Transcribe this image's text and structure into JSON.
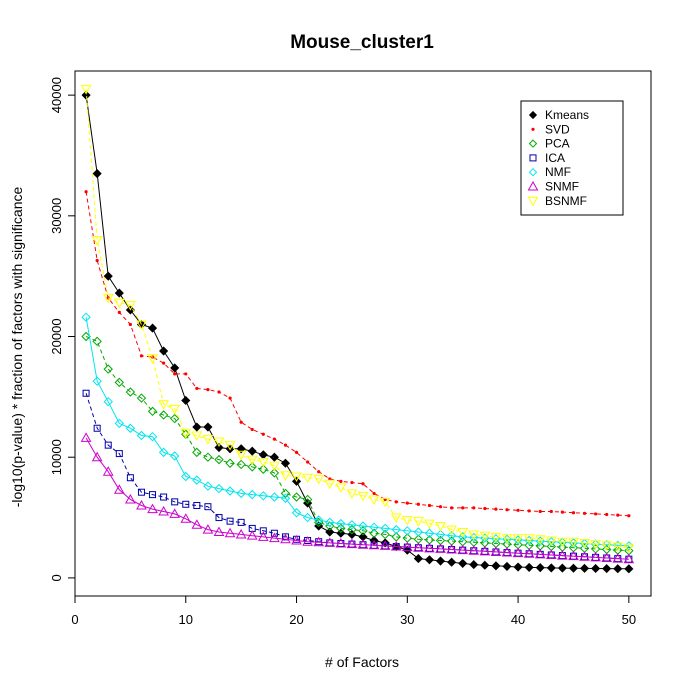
{
  "chart_data": {
    "type": "line",
    "title": "Mouse_cluster1",
    "xlabel": "# of Factors",
    "ylabel": "-log10(p-value) * fraction of factors with significance",
    "xlim": [
      0,
      52
    ],
    "ylim": [
      -1500,
      42000
    ],
    "x_ticks": [
      0,
      10,
      20,
      30,
      40,
      50
    ],
    "y_ticks": [
      0,
      10000,
      20000,
      30000,
      40000
    ],
    "legend_position": "top-right",
    "x": [
      1,
      2,
      3,
      4,
      5,
      6,
      7,
      8,
      9,
      10,
      11,
      12,
      13,
      14,
      15,
      16,
      17,
      18,
      19,
      20,
      21,
      22,
      23,
      24,
      25,
      26,
      27,
      28,
      29,
      30,
      31,
      32,
      33,
      34,
      35,
      36,
      37,
      38,
      39,
      40,
      41,
      42,
      43,
      44,
      45,
      46,
      47,
      48,
      49,
      50
    ],
    "series": [
      {
        "name": "Kmeans",
        "color": "#000000",
        "marker": "filled-diamond",
        "dash": "solid",
        "values": [
          40000,
          33500,
          25000,
          23600,
          22200,
          21000,
          20700,
          18800,
          17400,
          14700,
          12500,
          12500,
          10800,
          10700,
          10700,
          10500,
          10200,
          10000,
          9500,
          8000,
          6200,
          4300,
          3800,
          3700,
          3600,
          3400,
          3100,
          2900,
          2600,
          2300,
          1600,
          1500,
          1400,
          1300,
          1200,
          1100,
          1050,
          1000,
          950,
          900,
          870,
          850,
          830,
          810,
          800,
          790,
          780,
          770,
          760,
          750
        ]
      },
      {
        "name": "SVD",
        "color": "#ff0000",
        "marker": "small-dot",
        "dash": "dashed",
        "values": [
          32000,
          26300,
          23200,
          22000,
          21000,
          18400,
          18300,
          17800,
          16900,
          16900,
          15700,
          15600,
          15400,
          14900,
          12900,
          12300,
          11900,
          11500,
          11000,
          10400,
          9600,
          8800,
          8200,
          8000,
          7900,
          7800,
          7000,
          6500,
          6300,
          6200,
          6100,
          6000,
          5900,
          5800,
          5800,
          5800,
          5750,
          5700,
          5650,
          5600,
          5550,
          5500,
          5500,
          5450,
          5400,
          5350,
          5300,
          5250,
          5200,
          5150
        ]
      },
      {
        "name": "PCA",
        "color": "#00aa00",
        "marker": "open-diamond",
        "dash": "dashed",
        "values": [
          20000,
          19600,
          17300,
          16200,
          15400,
          14900,
          13800,
          13500,
          13200,
          11900,
          10400,
          10000,
          9800,
          9500,
          9400,
          9200,
          9000,
          8700,
          7000,
          6700,
          6500,
          4600,
          4300,
          4100,
          4000,
          3900,
          3700,
          3600,
          3400,
          3300,
          3200,
          3150,
          3100,
          3050,
          3000,
          2950,
          2900,
          2850,
          2800,
          2750,
          2700,
          2650,
          2600,
          2550,
          2500,
          2450,
          2400,
          2350,
          2300,
          2250
        ]
      },
      {
        "name": "ICA",
        "color": "#0000aa",
        "marker": "open-square",
        "dash": "dashed",
        "values": [
          15300,
          12400,
          11000,
          10300,
          8300,
          7100,
          6900,
          6700,
          6300,
          6100,
          6000,
          5900,
          5000,
          4700,
          4600,
          4100,
          3900,
          3700,
          3400,
          3200,
          3100,
          3000,
          2900,
          2850,
          2800,
          2750,
          2700,
          2650,
          2600,
          2550,
          2500,
          2450,
          2400,
          2350,
          2300,
          2250,
          2200,
          2150,
          2100,
          2050,
          2000,
          1950,
          1900,
          1850,
          1800,
          1750,
          1700,
          1650,
          1600,
          1550
        ]
      },
      {
        "name": "NMF",
        "color": "#00e5ee",
        "marker": "open-diamond",
        "dash": "solid",
        "values": [
          21600,
          16300,
          14600,
          12800,
          12400,
          11800,
          11700,
          10400,
          10100,
          8400,
          8100,
          7600,
          7400,
          7200,
          7000,
          6900,
          6800,
          6700,
          6600,
          5400,
          5000,
          4800,
          4600,
          4500,
          4400,
          4300,
          4200,
          4100,
          4000,
          3900,
          3800,
          3700,
          3600,
          3500,
          3400,
          3350,
          3300,
          3250,
          3200,
          3150,
          3100,
          3050,
          3000,
          2950,
          2900,
          2850,
          2800,
          2750,
          2700,
          2650
        ]
      },
      {
        "name": "SNMF",
        "color": "#cc00cc",
        "marker": "open-triangle",
        "dash": "solid",
        "values": [
          11600,
          10000,
          8800,
          7300,
          6500,
          6000,
          5700,
          5500,
          5300,
          4900,
          4400,
          4000,
          3800,
          3700,
          3600,
          3500,
          3400,
          3300,
          3200,
          3100,
          3000,
          2950,
          2900,
          2850,
          2800,
          2750,
          2700,
          2650,
          2600,
          2550,
          2500,
          2450,
          2400,
          2350,
          2300,
          2250,
          2200,
          2150,
          2100,
          2050,
          2000,
          1950,
          1900,
          1850,
          1800,
          1750,
          1700,
          1650,
          1600,
          1550
        ]
      },
      {
        "name": "BSNMF",
        "color": "#ffff00",
        "marker": "open-triangle-down",
        "dash": "dashed",
        "values": [
          40500,
          28000,
          23200,
          22800,
          22600,
          21000,
          18200,
          14400,
          14000,
          12000,
          11800,
          11500,
          11300,
          11000,
          10200,
          9800,
          9600,
          9300,
          8500,
          8400,
          8300,
          8200,
          7800,
          7500,
          7000,
          6800,
          6500,
          6300,
          5000,
          4800,
          4700,
          4500,
          4300,
          4000,
          3800,
          3600,
          3500,
          3400,
          3300,
          3300,
          3300,
          3200,
          3100,
          3000,
          3000,
          2900,
          2800,
          2700,
          2600,
          2500
        ]
      }
    ]
  }
}
